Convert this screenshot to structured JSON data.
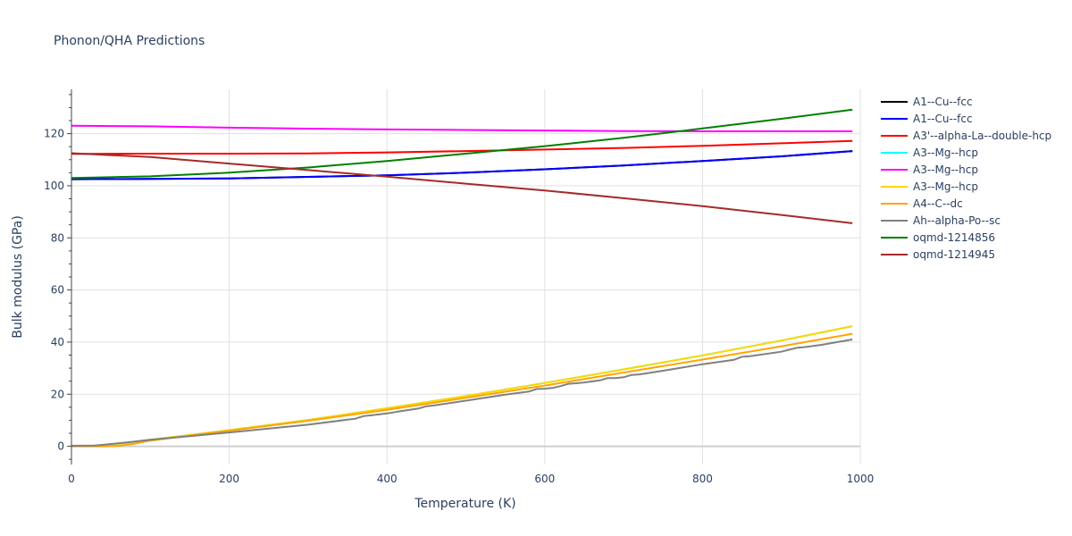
{
  "chart_data": {
    "type": "line",
    "title": "Phonon/QHA Predictions",
    "xlabel": "Temperature (K)",
    "ylabel": "Bulk modulus (GPa)",
    "xlim": [
      0,
      1000
    ],
    "ylim": [
      -7,
      137
    ],
    "xticks": [
      0,
      200,
      400,
      600,
      800,
      1000
    ],
    "yticks": [
      0,
      20,
      40,
      60,
      80,
      100,
      120
    ],
    "grid": true,
    "legend_position": "right",
    "series": [
      {
        "name": "A1--Cu--fcc",
        "color": "#000000",
        "x": [
          0,
          100,
          200,
          300,
          400,
          500,
          600,
          700,
          800,
          900,
          990
        ],
        "y": [
          102.5,
          102.6,
          102.8,
          103.4,
          104.0,
          105.0,
          106.3,
          107.8,
          109.5,
          111.3,
          113.3
        ]
      },
      {
        "name": "A1--Cu--fcc",
        "color": "#0000ff",
        "x": [
          0,
          100,
          200,
          300,
          400,
          500,
          600,
          700,
          800,
          900,
          990
        ],
        "y": [
          102.5,
          102.6,
          102.8,
          103.4,
          104.0,
          105.0,
          106.3,
          107.8,
          109.5,
          111.3,
          113.3
        ]
      },
      {
        "name": "A3'--alpha-La--double-hcp",
        "color": "#ff0000",
        "x": [
          0,
          100,
          200,
          300,
          400,
          500,
          600,
          700,
          800,
          900,
          990
        ],
        "y": [
          112.2,
          112.3,
          112.3,
          112.4,
          112.8,
          113.3,
          113.9,
          114.5,
          115.3,
          116.3,
          117.2
        ]
      },
      {
        "name": "A3--Mg--hcp",
        "color": "#00ffff",
        "x": [
          0,
          20,
          40,
          60,
          80,
          100,
          200,
          300,
          400,
          500,
          600,
          700,
          800,
          900,
          990
        ],
        "y": [
          0,
          0.1,
          0.4,
          1.0,
          1.7,
          2.5,
          6.2,
          10.1,
          14.6,
          19.3,
          24.3,
          29.5,
          34.9,
          40.6,
          46.1
        ]
      },
      {
        "name": "A3--Mg--hcp",
        "color": "#ff00ff",
        "x": [
          0,
          100,
          200,
          300,
          400,
          500,
          600,
          700,
          800,
          900,
          990
        ],
        "y": [
          123.0,
          122.8,
          122.3,
          121.9,
          121.6,
          121.4,
          121.2,
          121.0,
          120.9,
          120.9,
          120.9
        ]
      },
      {
        "name": "A3--Mg--hcp",
        "color": "#ffd700",
        "x": [
          0,
          20,
          40,
          60,
          80,
          100,
          200,
          300,
          400,
          500,
          600,
          700,
          800,
          900,
          990
        ],
        "y": [
          0,
          0.1,
          0.4,
          1.0,
          1.7,
          2.5,
          6.2,
          10.1,
          14.6,
          19.3,
          24.3,
          29.5,
          34.9,
          40.6,
          46.1
        ]
      },
      {
        "name": "A4--C--dc",
        "color": "#ffa500",
        "x": [
          0,
          40,
          60,
          80,
          100,
          200,
          300,
          400,
          500,
          600,
          700,
          800,
          900,
          990
        ],
        "y": [
          0,
          0,
          0.2,
          1.0,
          2.2,
          6.0,
          9.8,
          14.0,
          18.6,
          23.3,
          28.3,
          33.3,
          38.4,
          43.2
        ]
      },
      {
        "name": "Ah--alpha-Po--sc",
        "color": "#808080",
        "x": [
          0,
          30,
          50,
          70,
          100,
          150,
          200,
          250,
          300,
          350,
          360,
          370,
          380,
          400,
          420,
          440,
          450,
          460,
          500,
          550,
          580,
          590,
          600,
          610,
          620,
          630,
          640,
          650,
          670,
          680,
          690,
          700,
          710,
          720,
          750,
          800,
          840,
          850,
          860,
          900,
          910,
          920,
          930,
          950,
          990
        ],
        "y": [
          0.2,
          0.3,
          0.9,
          1.5,
          2.5,
          3.9,
          5.3,
          6.8,
          8.3,
          10.2,
          10.6,
          11.6,
          11.9,
          12.6,
          13.6,
          14.5,
          15.4,
          15.7,
          17.5,
          19.8,
          21.0,
          22.0,
          22.1,
          22.4,
          23.1,
          24.0,
          24.2,
          24.5,
          25.3,
          26.2,
          26.2,
          26.5,
          27.4,
          27.6,
          29.0,
          31.5,
          33.2,
          34.4,
          34.6,
          36.3,
          37.1,
          37.8,
          38.1,
          38.9,
          41.0
        ]
      },
      {
        "name": "oqmd-1214856",
        "color": "#008000",
        "x": [
          0,
          100,
          200,
          300,
          400,
          500,
          600,
          700,
          800,
          900,
          990
        ],
        "y": [
          103.0,
          103.6,
          105.0,
          107.0,
          109.5,
          112.3,
          115.2,
          118.4,
          122.0,
          125.7,
          129.2
        ]
      },
      {
        "name": "oqmd-1214945",
        "color": "#a52a2a",
        "x": [
          0,
          100,
          200,
          300,
          400,
          500,
          600,
          700,
          800,
          900,
          990
        ],
        "y": [
          112.5,
          111.0,
          108.5,
          106.0,
          103.5,
          100.8,
          98.2,
          95.2,
          92.2,
          88.8,
          85.6
        ]
      }
    ]
  }
}
